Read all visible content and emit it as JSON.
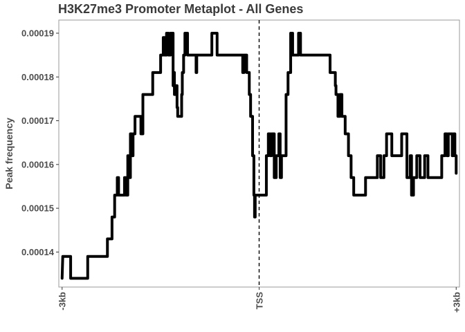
{
  "chart_data": {
    "type": "line",
    "title": "H3K27me3 Promoter Metaplot - All Genes",
    "xlabel": "",
    "ylabel": "Peak frequency",
    "xlim": [
      -3050,
      3050
    ],
    "ylim": [
      0.000132,
      0.000193
    ],
    "x_ticks": [
      {
        "value": -3000,
        "label": "-3kb"
      },
      {
        "value": 0,
        "label": "TSS"
      },
      {
        "value": 3000,
        "label": "+3kb"
      }
    ],
    "y_ticks": [
      {
        "value": 0.00014,
        "label": "0.00014"
      },
      {
        "value": 0.00015,
        "label": "0.00015"
      },
      {
        "value": 0.00016,
        "label": "0.00016"
      },
      {
        "value": 0.00017,
        "label": "0.00017"
      },
      {
        "value": 0.00018,
        "label": "0.00018"
      },
      {
        "value": 0.00019,
        "label": "0.00019"
      }
    ],
    "vline": 0,
    "grid": false,
    "series": [
      {
        "color": "#000000",
        "points": [
          [
            -3000,
            0.000134
          ],
          [
            -2990,
            0.000139
          ],
          [
            -2870,
            0.000139
          ],
          [
            -2870,
            0.000134
          ],
          [
            -2610,
            0.000134
          ],
          [
            -2610,
            0.000139
          ],
          [
            -2310,
            0.000139
          ],
          [
            -2310,
            0.000143
          ],
          [
            -2240,
            0.000143
          ],
          [
            -2240,
            0.000148
          ],
          [
            -2200,
            0.000148
          ],
          [
            -2200,
            0.000153
          ],
          [
            -2160,
            0.000153
          ],
          [
            -2160,
            0.000157
          ],
          [
            -2140,
            0.000157
          ],
          [
            -2140,
            0.000153
          ],
          [
            -2050,
            0.000153
          ],
          [
            -2050,
            0.000157
          ],
          [
            -2030,
            0.000157
          ],
          [
            -2030,
            0.000153
          ],
          [
            -2000,
            0.000153
          ],
          [
            -2000,
            0.000162
          ],
          [
            -1990,
            0.000162
          ],
          [
            -1990,
            0.000157
          ],
          [
            -1960,
            0.000157
          ],
          [
            -1960,
            0.000167
          ],
          [
            -1940,
            0.000167
          ],
          [
            -1940,
            0.000162
          ],
          [
            -1920,
            0.000162
          ],
          [
            -1920,
            0.000167
          ],
          [
            -1890,
            0.000167
          ],
          [
            -1890,
            0.000171
          ],
          [
            -1800,
            0.000171
          ],
          [
            -1800,
            0.000167
          ],
          [
            -1770,
            0.000167
          ],
          [
            -1770,
            0.000176
          ],
          [
            -1620,
            0.000176
          ],
          [
            -1620,
            0.000181
          ],
          [
            -1500,
            0.000181
          ],
          [
            -1500,
            0.000185
          ],
          [
            -1460,
            0.000185
          ],
          [
            -1460,
            0.000189
          ],
          [
            -1440,
            0.000189
          ],
          [
            -1440,
            0.000185
          ],
          [
            -1410,
            0.000185
          ],
          [
            -1410,
            0.00019
          ],
          [
            -1380,
            0.00019
          ],
          [
            -1380,
            0.000185
          ],
          [
            -1350,
            0.000185
          ],
          [
            -1350,
            0.00019
          ],
          [
            -1310,
            0.00019
          ],
          [
            -1310,
            0.000178
          ],
          [
            -1300,
            0.000178
          ],
          [
            -1300,
            0.000181
          ],
          [
            -1290,
            0.000181
          ],
          [
            -1290,
            0.000176
          ],
          [
            -1270,
            0.000176
          ],
          [
            -1270,
            0.000178
          ],
          [
            -1250,
            0.000178
          ],
          [
            -1250,
            0.000173
          ],
          [
            -1240,
            0.000173
          ],
          [
            -1240,
            0.000171
          ],
          [
            -1180,
            0.000171
          ],
          [
            -1180,
            0.000176
          ],
          [
            -1170,
            0.000176
          ],
          [
            -1170,
            0.000181
          ],
          [
            -1150,
            0.000181
          ],
          [
            -1150,
            0.000185
          ],
          [
            -1130,
            0.000185
          ],
          [
            -1130,
            0.00019
          ],
          [
            -1090,
            0.00019
          ],
          [
            -1090,
            0.000185
          ],
          [
            -960,
            0.000185
          ],
          [
            -960,
            0.000181
          ],
          [
            -950,
            0.000181
          ],
          [
            -950,
            0.000185
          ],
          [
            -720,
            0.000185
          ],
          [
            -720,
            0.00019
          ],
          [
            -640,
            0.00019
          ],
          [
            -640,
            0.000185
          ],
          [
            -250,
            0.000185
          ],
          [
            -250,
            0.000181
          ],
          [
            -230,
            0.000181
          ],
          [
            -230,
            0.000185
          ],
          [
            -190,
            0.000185
          ],
          [
            -190,
            0.000181
          ],
          [
            -150,
            0.000181
          ],
          [
            -150,
            0.000176
          ],
          [
            -130,
            0.000176
          ],
          [
            -130,
            0.000171
          ],
          [
            -100,
            0.000171
          ],
          [
            -100,
            0.000162
          ],
          [
            -80,
            0.000162
          ],
          [
            -80,
            0.000153
          ],
          [
            -70,
            0.000153
          ],
          [
            -70,
            0.000148
          ],
          [
            -60,
            0.000148
          ],
          [
            -60,
            0.000153
          ],
          [
            110,
            0.000153
          ],
          [
            110,
            0.000162
          ],
          [
            140,
            0.000162
          ],
          [
            140,
            0.000167
          ],
          [
            170,
            0.000167
          ],
          [
            170,
            0.000162
          ],
          [
            190,
            0.000162
          ],
          [
            190,
            0.000167
          ],
          [
            230,
            0.000167
          ],
          [
            230,
            0.000157
          ],
          [
            260,
            0.000157
          ],
          [
            260,
            0.000162
          ],
          [
            300,
            0.000162
          ],
          [
            300,
            0.000167
          ],
          [
            320,
            0.000167
          ],
          [
            320,
            0.000157
          ],
          [
            340,
            0.000157
          ],
          [
            340,
            0.000162
          ],
          [
            410,
            0.000162
          ],
          [
            410,
            0.000176
          ],
          [
            440,
            0.000176
          ],
          [
            440,
            0.000181
          ],
          [
            480,
            0.000181
          ],
          [
            480,
            0.00019
          ],
          [
            510,
            0.00019
          ],
          [
            510,
            0.000185
          ],
          [
            600,
            0.000185
          ],
          [
            600,
            0.00019
          ],
          [
            630,
            0.00019
          ],
          [
            630,
            0.000185
          ],
          [
            1080,
            0.000185
          ],
          [
            1080,
            0.000181
          ],
          [
            1160,
            0.000181
          ],
          [
            1160,
            0.000178
          ],
          [
            1170,
            0.000178
          ],
          [
            1170,
            0.000176
          ],
          [
            1200,
            0.000176
          ],
          [
            1200,
            0.000171
          ],
          [
            1230,
            0.000171
          ],
          [
            1230,
            0.000176
          ],
          [
            1260,
            0.000176
          ],
          [
            1260,
            0.000171
          ],
          [
            1310,
            0.000171
          ],
          [
            1310,
            0.000167
          ],
          [
            1360,
            0.000167
          ],
          [
            1360,
            0.000162
          ],
          [
            1400,
            0.000162
          ],
          [
            1400,
            0.000157
          ],
          [
            1440,
            0.000157
          ],
          [
            1440,
            0.000153
          ],
          [
            1620,
            0.000153
          ],
          [
            1620,
            0.000157
          ],
          [
            1800,
            0.000157
          ],
          [
            1800,
            0.000162
          ],
          [
            1850,
            0.000162
          ],
          [
            1850,
            0.000157
          ],
          [
            1900,
            0.000157
          ],
          [
            1900,
            0.000162
          ],
          [
            1940,
            0.000162
          ],
          [
            1940,
            0.000167
          ],
          [
            2020,
            0.000167
          ],
          [
            2020,
            0.000162
          ],
          [
            2170,
            0.000162
          ],
          [
            2170,
            0.000167
          ],
          [
            2250,
            0.000167
          ],
          [
            2250,
            0.000157
          ],
          [
            2300,
            0.000157
          ],
          [
            2300,
            0.000162
          ],
          [
            2320,
            0.000162
          ],
          [
            2320,
            0.000153
          ],
          [
            2350,
            0.000153
          ],
          [
            2350,
            0.000157
          ],
          [
            2400,
            0.000157
          ],
          [
            2400,
            0.000162
          ],
          [
            2450,
            0.000162
          ],
          [
            2450,
            0.000157
          ],
          [
            2520,
            0.000157
          ],
          [
            2520,
            0.000162
          ],
          [
            2570,
            0.000162
          ],
          [
            2570,
            0.000157
          ],
          [
            2780,
            0.000157
          ],
          [
            2780,
            0.000162
          ],
          [
            2830,
            0.000162
          ],
          [
            2830,
            0.000167
          ],
          [
            2860,
            0.000167
          ],
          [
            2860,
            0.000162
          ],
          [
            2880,
            0.000162
          ],
          [
            2880,
            0.000167
          ],
          [
            2940,
            0.000167
          ],
          [
            2940,
            0.000162
          ],
          [
            2960,
            0.000162
          ],
          [
            2960,
            0.000167
          ],
          [
            2980,
            0.000167
          ],
          [
            2980,
            0.000162
          ],
          [
            3000,
            0.000162
          ],
          [
            3000,
            0.000158
          ]
        ]
      }
    ]
  }
}
